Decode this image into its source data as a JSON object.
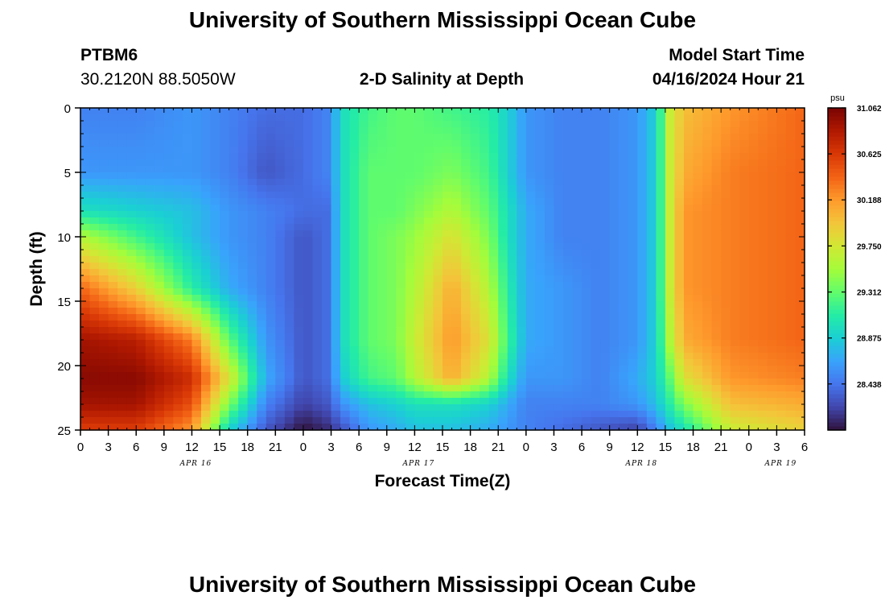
{
  "chart_data": {
    "type": "heatmap",
    "title": "University of Southern Mississippi Ocean Cube",
    "footer_title": "University of Southern Mississippi Ocean Cube",
    "station": "PTBM6",
    "location": "30.2120N  88.5050W",
    "subtitle": "2-D Salinity at Depth",
    "model_start_label": "Model Start Time",
    "model_start_value": "04/16/2024 Hour 21",
    "xlabel": "Forecast Time(Z)",
    "ylabel": "Depth (ft)",
    "x_range_hours": [
      0,
      78
    ],
    "x_ticks": [
      {
        "h": 0,
        "label": "0"
      },
      {
        "h": 3,
        "label": "3"
      },
      {
        "h": 6,
        "label": "6"
      },
      {
        "h": 9,
        "label": "9"
      },
      {
        "h": 12,
        "label": "12"
      },
      {
        "h": 15,
        "label": "15"
      },
      {
        "h": 18,
        "label": "18"
      },
      {
        "h": 21,
        "label": "21"
      },
      {
        "h": 24,
        "label": "0"
      },
      {
        "h": 27,
        "label": "3"
      },
      {
        "h": 30,
        "label": "6"
      },
      {
        "h": 33,
        "label": "9"
      },
      {
        "h": 36,
        "label": "12"
      },
      {
        "h": 39,
        "label": "15"
      },
      {
        "h": 42,
        "label": "18"
      },
      {
        "h": 45,
        "label": "21"
      },
      {
        "h": 48,
        "label": "0"
      },
      {
        "h": 51,
        "label": "3"
      },
      {
        "h": 54,
        "label": "6"
      },
      {
        "h": 57,
        "label": "9"
      },
      {
        "h": 60,
        "label": "12"
      },
      {
        "h": 63,
        "label": "15"
      },
      {
        "h": 66,
        "label": "18"
      },
      {
        "h": 69,
        "label": "21"
      },
      {
        "h": 72,
        "label": "0"
      },
      {
        "h": 75,
        "label": "3"
      },
      {
        "h": 78,
        "label": "6"
      }
    ],
    "date_labels": [
      {
        "h": 12,
        "label": "APR 16"
      },
      {
        "h": 36,
        "label": "APR 17"
      },
      {
        "h": 60,
        "label": "APR 18"
      },
      {
        "h": 75,
        "label": "APR 19"
      }
    ],
    "y_range_ft": [
      0,
      25
    ],
    "y_ticks": [
      0,
      5,
      10,
      15,
      20,
      25
    ],
    "colorbar": {
      "unit": "psu",
      "min": 28.0,
      "max": 31.062,
      "tick_values": [
        31.062,
        30.625,
        30.188,
        29.75,
        29.312,
        28.875,
        28.438
      ],
      "tick_labels": [
        "31.062",
        "30.625",
        "30.188",
        "29.750",
        "29.312",
        "28.875",
        "28.438"
      ],
      "colormap": [
        "#30123b",
        "#4145ab",
        "#4675ed",
        "#39a2fc",
        "#1bcfd4",
        "#24eca6",
        "#61fc6c",
        "#a4fc3b",
        "#d1e834",
        "#f3c63a",
        "#fe9b2d",
        "#f36315",
        "#d93806",
        "#b11901",
        "#7a0402"
      ]
    },
    "field_model": {
      "time_breakpoints_h": [
        0,
        6,
        12,
        16,
        20,
        24,
        26.5,
        28.5,
        31,
        34,
        36,
        40,
        44,
        46,
        48,
        52,
        56,
        60,
        62,
        63.5,
        65,
        70,
        78
      ],
      "profiles_by_depth_ft": {
        "depths": [
          0,
          5,
          8,
          10,
          14,
          18,
          21,
          23,
          25
        ],
        "columns": [
          [
            28.5,
            28.6,
            29.0,
            29.6,
            30.4,
            30.9,
            31.0,
            30.9,
            30.6
          ],
          [
            28.5,
            28.6,
            28.9,
            29.2,
            29.9,
            30.8,
            31.0,
            30.9,
            30.6
          ],
          [
            28.6,
            28.6,
            28.8,
            28.8,
            29.1,
            30.3,
            30.7,
            30.5,
            30.2
          ],
          [
            28.5,
            28.5,
            28.6,
            28.6,
            28.7,
            29.3,
            29.8,
            29.4,
            28.9
          ],
          [
            28.4,
            28.3,
            28.5,
            28.5,
            28.5,
            28.6,
            28.7,
            28.5,
            28.3
          ],
          [
            28.4,
            28.4,
            28.4,
            28.3,
            28.3,
            28.3,
            28.3,
            28.2,
            28.0
          ],
          [
            28.5,
            28.5,
            28.4,
            28.4,
            28.4,
            28.4,
            28.4,
            28.3,
            28.1
          ],
          [
            29.0,
            29.0,
            29.0,
            29.0,
            29.0,
            29.0,
            28.9,
            28.6,
            28.3
          ],
          [
            29.2,
            29.3,
            29.3,
            29.3,
            29.3,
            29.3,
            29.2,
            28.8,
            28.6
          ],
          [
            29.3,
            29.3,
            29.3,
            29.4,
            29.4,
            29.4,
            29.3,
            28.9,
            28.7
          ],
          [
            29.3,
            29.3,
            29.4,
            29.5,
            29.6,
            29.7,
            29.6,
            29.0,
            28.8
          ],
          [
            29.2,
            29.4,
            29.6,
            29.8,
            30.1,
            30.2,
            30.1,
            29.0,
            28.8
          ],
          [
            29.1,
            29.2,
            29.3,
            29.4,
            29.6,
            29.8,
            29.6,
            28.9,
            28.7
          ],
          [
            28.9,
            28.9,
            29.0,
            29.0,
            29.1,
            29.2,
            29.0,
            28.7,
            28.6
          ],
          [
            28.6,
            28.6,
            28.7,
            28.7,
            28.7,
            28.7,
            28.6,
            28.5,
            28.5
          ],
          [
            28.5,
            28.5,
            28.5,
            28.5,
            28.6,
            28.6,
            28.6,
            28.5,
            28.4
          ],
          [
            28.5,
            28.5,
            28.5,
            28.5,
            28.5,
            28.5,
            28.5,
            28.5,
            28.3
          ],
          [
            28.6,
            28.6,
            28.6,
            28.6,
            28.6,
            28.6,
            28.7,
            28.6,
            28.2
          ],
          [
            28.9,
            28.9,
            28.9,
            28.9,
            28.9,
            28.9,
            28.9,
            28.8,
            28.5
          ],
          [
            29.7,
            29.7,
            29.7,
            29.7,
            29.7,
            29.6,
            29.3,
            29.1,
            28.8
          ],
          [
            30.0,
            30.1,
            30.2,
            30.2,
            30.2,
            30.1,
            29.8,
            29.4,
            29.0
          ],
          [
            30.2,
            30.3,
            30.3,
            30.3,
            30.3,
            30.3,
            30.2,
            30.0,
            29.7
          ],
          [
            30.4,
            30.4,
            30.4,
            30.4,
            30.4,
            30.4,
            30.3,
            30.1,
            29.9
          ]
        ]
      }
    }
  }
}
